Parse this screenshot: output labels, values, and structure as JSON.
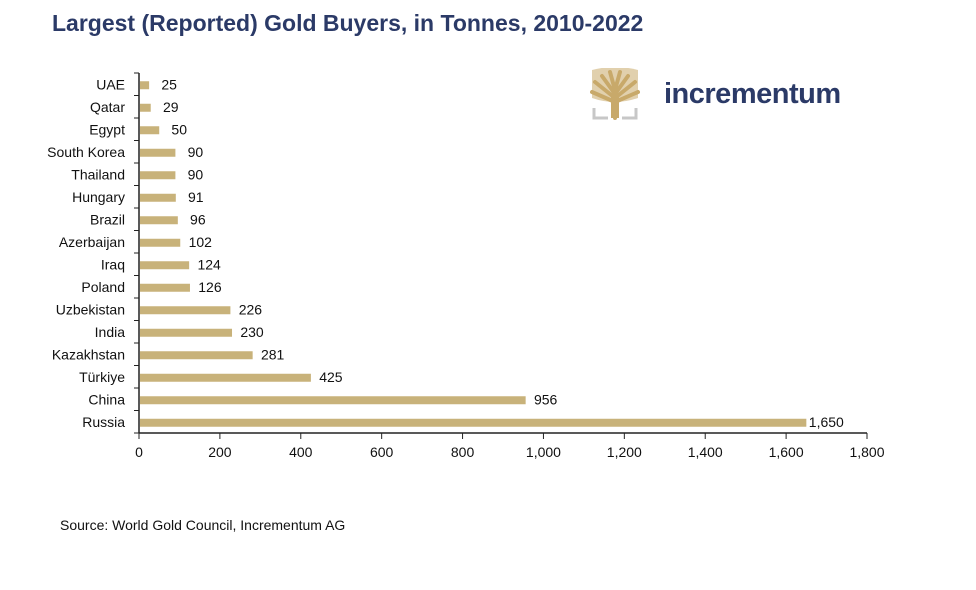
{
  "title": "Largest (Reported) Gold Buyers, in Tonnes, 2010-2022",
  "logo": {
    "text": "incrementum",
    "icon": "tree-icon"
  },
  "source": "Source: World Gold Council, Incrementum AG",
  "colors": {
    "bar": "#c8b27a",
    "title": "#2b3a67",
    "logo_gold": "#c8a96a"
  },
  "chart_data": {
    "type": "bar",
    "orientation": "horizontal",
    "title": "Largest (Reported) Gold Buyers, in Tonnes, 2010-2022",
    "categories": [
      "UAE",
      "Qatar",
      "Egypt",
      "South Korea",
      "Thailand",
      "Hungary",
      "Brazil",
      "Azerbaijan",
      "Iraq",
      "Poland",
      "Uzbekistan",
      "India",
      "Kazakhstan",
      "Türkiye",
      "China",
      "Russia"
    ],
    "values": [
      25,
      29,
      50,
      90,
      90,
      91,
      96,
      102,
      124,
      126,
      226,
      230,
      281,
      425,
      956,
      1650
    ],
    "value_labels": [
      "25",
      "29",
      "50",
      "90",
      "90",
      "91",
      "96",
      "102",
      "124",
      "126",
      "226",
      "230",
      "281",
      "425",
      "956",
      "1,650"
    ],
    "xlim": [
      0,
      1800
    ],
    "xticks": [
      0,
      200,
      400,
      600,
      800,
      1000,
      1200,
      1400,
      1600,
      1800
    ],
    "xtick_labels": [
      "0",
      "200",
      "400",
      "600",
      "800",
      "1,000",
      "1,200",
      "1,400",
      "1,600",
      "1,800"
    ],
    "xlabel": "",
    "ylabel": "",
    "grid": false,
    "legend": "none"
  }
}
